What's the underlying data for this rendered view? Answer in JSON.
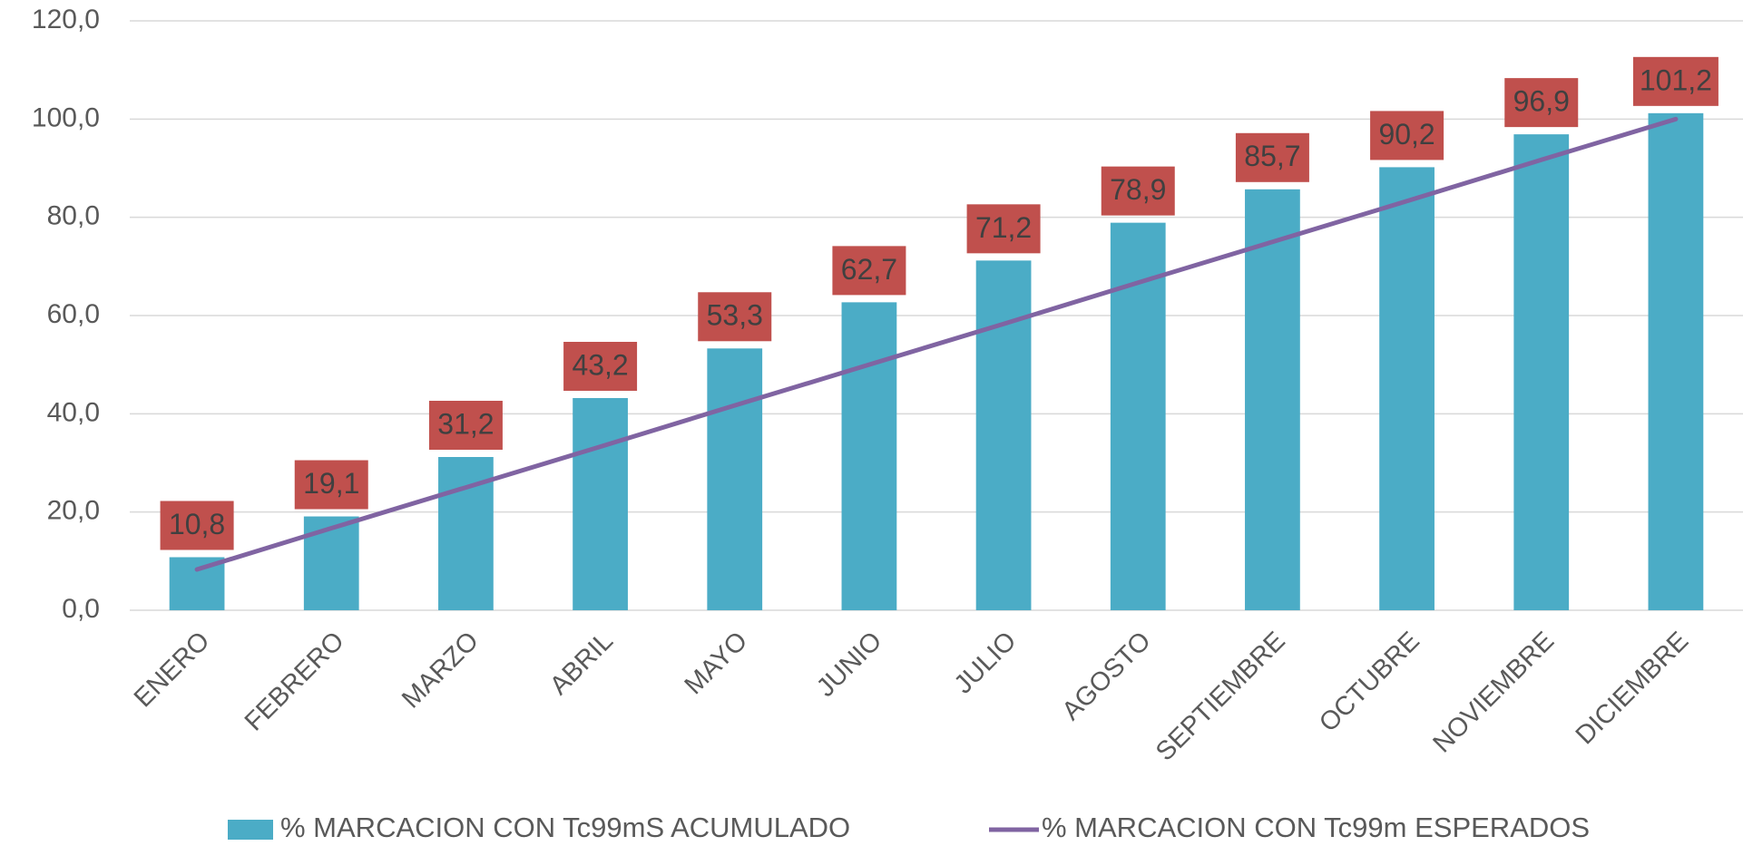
{
  "chart_data": {
    "type": "bar",
    "categories": [
      "ENERO",
      "FEBRERO",
      "MARZO",
      "ABRIL",
      "MAYO",
      "JUNIO",
      "JULIO",
      "AGOSTO",
      "SEPTIEMBRE",
      "OCTUBRE",
      "NOVIEMBRE",
      "DICIEMBRE"
    ],
    "series": [
      {
        "name": "% MARCACION CON Tc99mS ACUMULADO",
        "type": "bar",
        "color": "#4bacc6",
        "values": [
          10.8,
          19.1,
          31.2,
          43.2,
          53.3,
          62.7,
          71.2,
          78.9,
          85.7,
          90.2,
          96.9,
          101.2
        ],
        "value_labels": [
          "10,8",
          "19,1",
          "31,2",
          "43,2",
          "53,3",
          "62,7",
          "71,2",
          "78,9",
          "85,7",
          "90,2",
          "96,9",
          "101,2"
        ],
        "label_color": "#c0504d"
      },
      {
        "name": "% MARCACION CON Tc99m ESPERADOS",
        "type": "line",
        "color": "#8064a2",
        "values": [
          8.3,
          16.7,
          25,
          33.3,
          41.7,
          50,
          58.3,
          66.7,
          75,
          83.3,
          91.7,
          100
        ]
      }
    ],
    "ylim": [
      0,
      120
    ],
    "yticks": [
      {
        "value": 0,
        "label": "0,0"
      },
      {
        "value": 20,
        "label": "20,0"
      },
      {
        "value": 40,
        "label": "40,0"
      },
      {
        "value": 60,
        "label": "60,0"
      },
      {
        "value": 80,
        "label": "80,0"
      },
      {
        "value": 100,
        "label": "100,0"
      },
      {
        "value": 120,
        "label": "120,0"
      }
    ],
    "grid": true,
    "legend": "bottom"
  }
}
